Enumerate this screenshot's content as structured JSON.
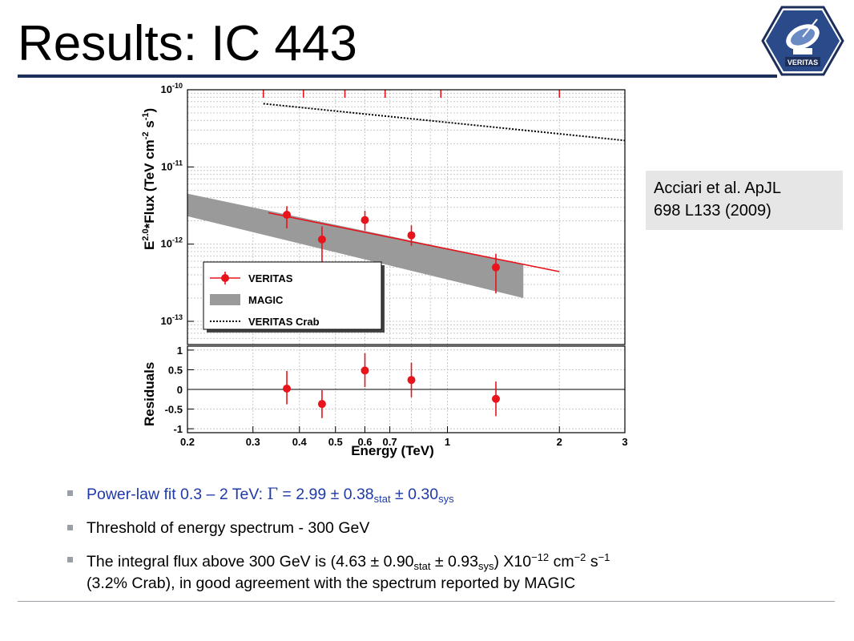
{
  "title": "Results: IC 443",
  "logo": {
    "text": "VERITAS",
    "icon": "veritas-telescope-logo-icon"
  },
  "citation": {
    "line1": "Acciari et al. ApJL",
    "line2": "698 L133 (2009)"
  },
  "bullets": {
    "b1": {
      "pre": "Power-law fit 0.3 – 2 TeV: ",
      "gamma": "Γ",
      "mid": " = 2.99 ± 0.38",
      "sub1": "stat",
      "mid2": " ± 0.30",
      "sub2": "sys"
    },
    "b2": "Threshold of energy spectrum - 300 GeV",
    "b3": {
      "pre": " The integral flux above 300 GeV is (4.63 ± 0.90",
      "sub1": "stat",
      "mid": " ± 0.93",
      "sub2": "sys",
      "mid2": ") X10",
      "sup1": "−12",
      "mid3": " cm",
      "sup2": "−2",
      "mid4": " s",
      "sup3": "−1",
      "line2": "(3.2% Crab), in good agreement with the spectrum reported by MAGIC"
    }
  },
  "colors": {
    "veritas": "#e8131b",
    "magic": "#9a9a9a",
    "title_rule": "#1c2e5a",
    "bullet1": "#1f3aa8"
  },
  "chart_data": {
    "type": "scatter",
    "log_x": true,
    "xlabel": "Energy (TeV)",
    "xlim": [
      0.2,
      3
    ],
    "x_ticks": [
      "0.2",
      "0.3",
      "0.4",
      "0.5",
      "0.6",
      "0.7",
      "1",
      "2",
      "3"
    ],
    "x_tick_values": [
      0.2,
      0.3,
      0.4,
      0.5,
      0.6,
      0.7,
      1,
      2,
      3
    ],
    "top_panel": {
      "ylabel_parts": {
        "a": "E",
        "sup1": "2.0",
        "b": "*Flux (TeV cm",
        "sup2": "-2",
        "c": " s",
        "sup3": "-1",
        "d": ")"
      },
      "log_y": true,
      "ylim": [
        5e-14,
        1e-10
      ],
      "y_ticks": [
        {
          "value": 1e-10,
          "base": "10",
          "exp": "-10"
        },
        {
          "value": 1e-11,
          "base": "10",
          "exp": "-11"
        },
        {
          "value": 1e-12,
          "base": "10",
          "exp": "-12"
        },
        {
          "value": 1e-13,
          "base": "10",
          "exp": "-13"
        }
      ],
      "veritas_points": [
        {
          "x": 0.37,
          "y": 2.4e-12,
          "ylo": 1.6e-12,
          "yhi": 3.1e-12
        },
        {
          "x": 0.46,
          "y": 1.15e-12,
          "ylo": 5.5e-13,
          "yhi": 1.7e-12
        },
        {
          "x": 0.6,
          "y": 2.05e-12,
          "ylo": 1.5e-12,
          "yhi": 2.7e-12
        },
        {
          "x": 0.8,
          "y": 1.3e-12,
          "ylo": 9.5e-13,
          "yhi": 1.75e-12
        },
        {
          "x": 1.35,
          "y": 5e-13,
          "ylo": 2.3e-13,
          "yhi": 7.5e-13
        }
      ],
      "veritas_fit": {
        "x": [
          0.33,
          2.0
        ],
        "y": [
          2.55e-12,
          4.4e-13
        ]
      },
      "magic_band": {
        "x": [
          0.2,
          1.6
        ],
        "upper": [
          4.5e-12,
          5.5e-13
        ],
        "lower": [
          2.3e-12,
          2e-13
        ]
      },
      "crab_line": {
        "x": [
          0.32,
          3.0
        ],
        "y": [
          6.6e-11,
          2.2e-11
        ]
      },
      "upper_limit_marks": [
        0.32,
        0.41,
        0.53,
        0.68,
        0.96,
        2.0
      ],
      "legend": [
        {
          "label": "VERITAS",
          "style": "point"
        },
        {
          "label": "MAGIC",
          "style": "band"
        },
        {
          "label": "VERITAS Crab",
          "style": "dotted"
        }
      ]
    },
    "bottom_panel": {
      "ylabel": "Residuals",
      "ylim": [
        -1.1,
        1.1
      ],
      "y_ticks": [
        "1",
        "0.5",
        "0",
        "-0.5",
        "-1"
      ],
      "y_tick_values": [
        1,
        0.5,
        0,
        -0.5,
        -1
      ],
      "points": [
        {
          "x": 0.37,
          "y": 0.02,
          "ylo": -0.38,
          "yhi": 0.47
        },
        {
          "x": 0.46,
          "y": -0.37,
          "ylo": -0.73,
          "yhi": -0.02
        },
        {
          "x": 0.6,
          "y": 0.48,
          "ylo": 0.06,
          "yhi": 0.92
        },
        {
          "x": 0.8,
          "y": 0.24,
          "ylo": -0.2,
          "yhi": 0.68
        },
        {
          "x": 1.35,
          "y": -0.24,
          "ylo": -0.68,
          "yhi": 0.2
        }
      ]
    }
  }
}
